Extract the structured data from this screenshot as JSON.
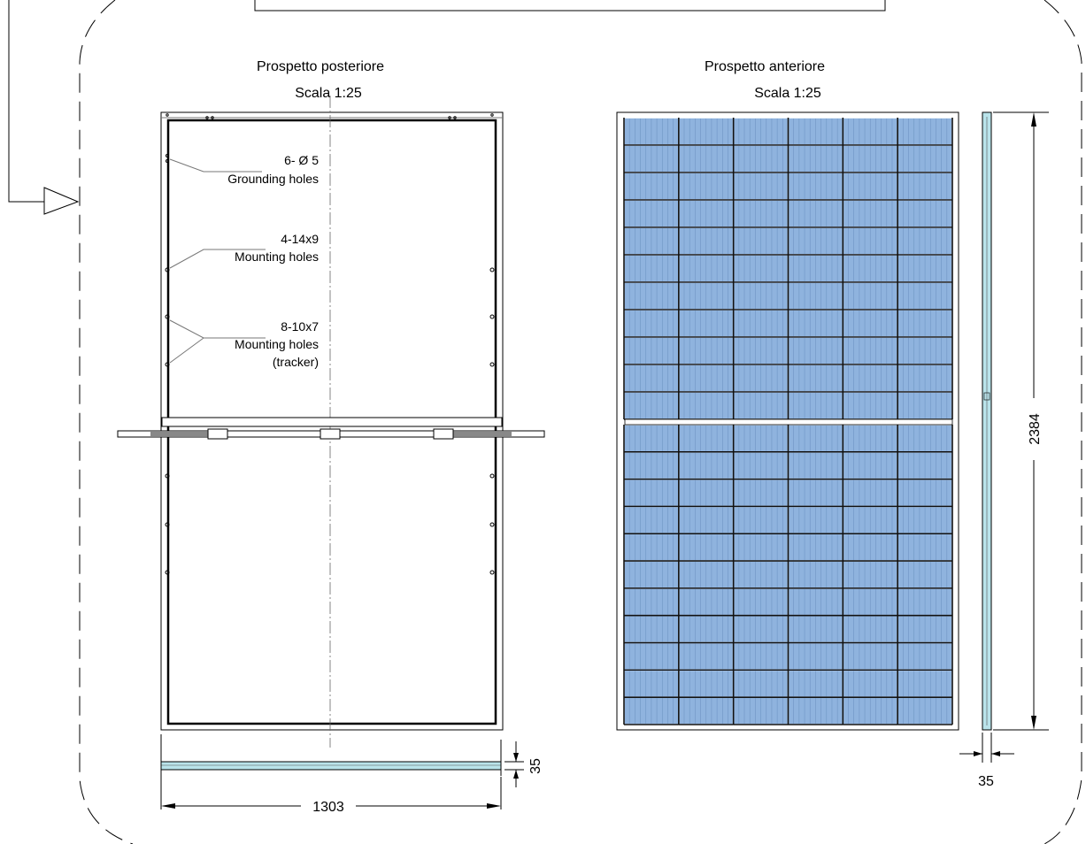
{
  "colors": {
    "cell": "#8fb3de",
    "cell_grid": "#6f95c4",
    "frame": "#000000",
    "glass_edge": "#b9e3ea"
  },
  "rear_view": {
    "title": "Prospetto posteriore",
    "scale": "Scala 1:25",
    "callout_ground_count": "6- Ø 5",
    "callout_ground_label": "Grounding holes",
    "callout_mount_count": "4-14x9",
    "callout_mount_label": "Mounting holes",
    "callout_tracker_count": "8-10x7",
    "callout_tracker_label": "Mounting holes",
    "callout_tracker_note": "(tracker)"
  },
  "front_view": {
    "title": "Prospetto anteriore",
    "scale": "Scala 1:25"
  },
  "dimensions": {
    "width": "1303",
    "frame_depth_bottom": "35",
    "height": "2384",
    "frame_depth_side": "35"
  },
  "grid": {
    "cell_columns": 6,
    "cell_rows_top": 11,
    "cell_rows_bottom": 11
  }
}
